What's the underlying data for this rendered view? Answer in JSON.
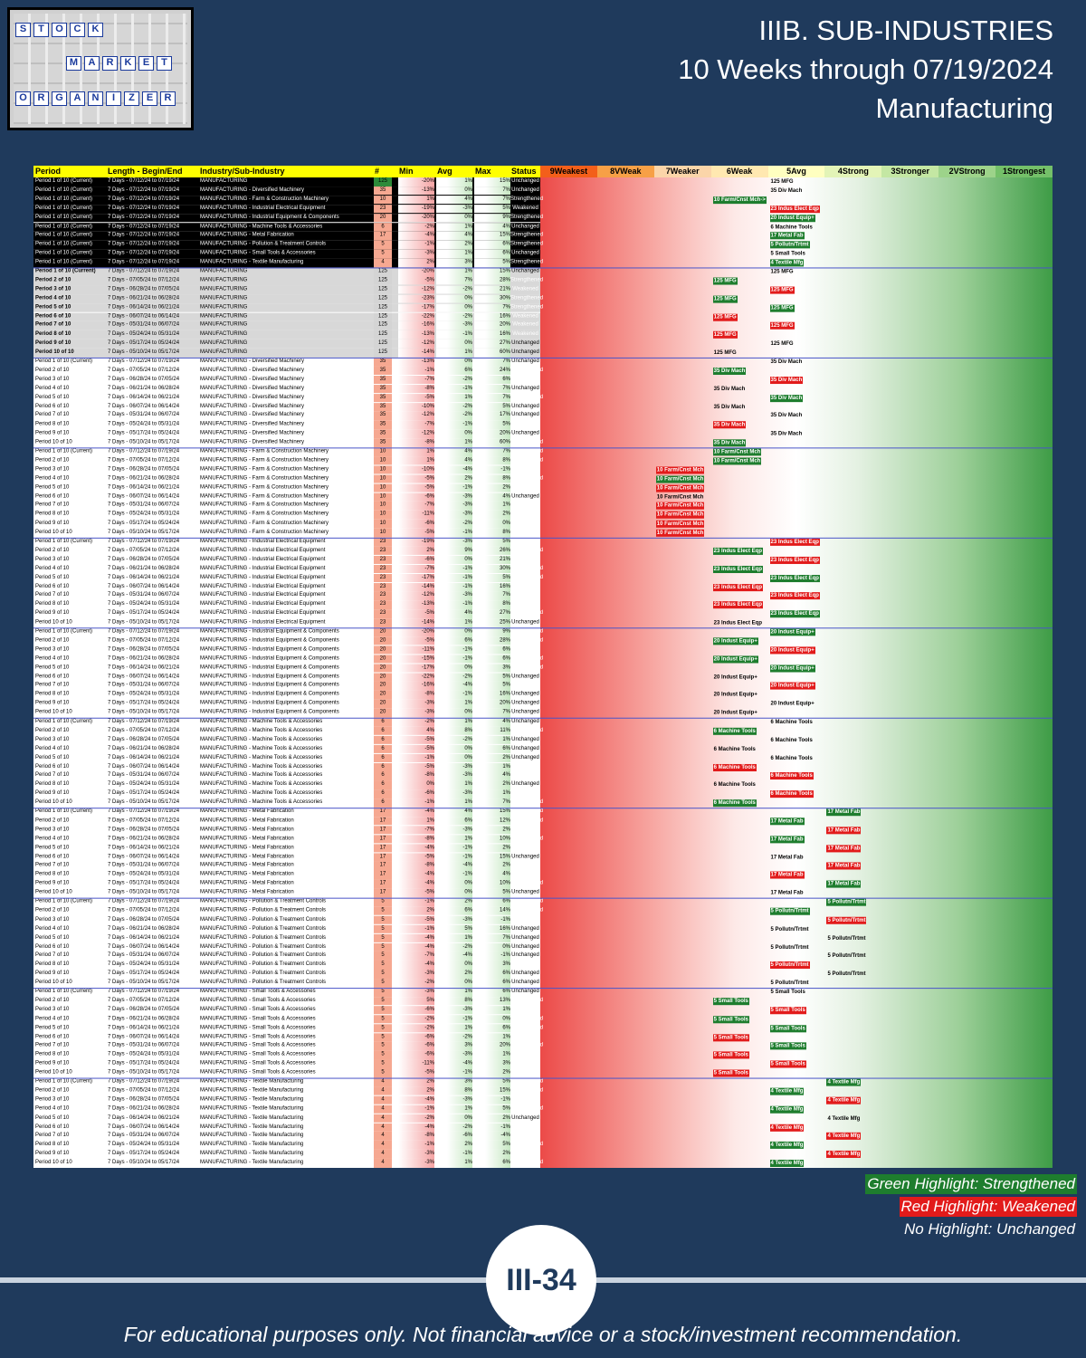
{
  "logo": {
    "rows": [
      [
        "S",
        "T",
        "O",
        "C",
        "K"
      ],
      [
        "M",
        "A",
        "R",
        "K",
        "E",
        "T"
      ],
      [
        "O",
        "R",
        "G",
        "A",
        "N",
        "I",
        "Z",
        "E",
        "R"
      ]
    ]
  },
  "title": {
    "line1": "IIIB. SUB-INDUSTRIES",
    "line2": "10 Weeks through 07/19/2024",
    "line3": "Manufacturing"
  },
  "header": {
    "period": "Period",
    "length": "Length - Begin/End",
    "industry": "Industry/Sub-Industry",
    "count": "#",
    "min": "Min",
    "avg": "Avg",
    "max": "Max",
    "status": "Status",
    "ranks": [
      "9Weakest",
      "8VWeak",
      "7Weaker",
      "6Weak",
      "5Avg",
      "4Strong",
      "3Stronger",
      "2VStrong",
      "1Strongest"
    ]
  },
  "colors": {
    "green": "#1e7d2e",
    "red": "#e21b1b",
    "header": "#ffff00"
  },
  "weeks": [
    "7 Days - 07/12/24 to 07/19/24",
    "7 Days - 07/05/24 to 07/12/24",
    "7 Days - 06/28/24 to 07/05/24",
    "7 Days - 06/21/24 to 06/28/24",
    "7 Days - 06/14/24 to 06/21/24",
    "7 Days - 06/07/24 to 06/14/24",
    "7 Days - 05/31/24 to 06/07/24",
    "7 Days - 05/24/24 to 05/31/24",
    "7 Days - 05/17/24 to 05/24/24",
    "7 Days - 05/10/24 to 05/17/24"
  ],
  "periods": [
    "Period 1 of 10 (Current)",
    "Period 2 of 10",
    "Period 3 of 10",
    "Period 4 of 10",
    "Period 5 of 10",
    "Period 6 of 10",
    "Period 7 of 10",
    "Period 8 of 10",
    "Period 9 of 10",
    "Period 10 of 10"
  ],
  "summary": [
    {
      "name": "MANUFACTURING",
      "n": "125",
      "min": "-20%",
      "avg": "1%",
      "max": "15%",
      "status": "Unchanged",
      "label": "125 MFG"
    },
    {
      "name": "MANUFACTURING - Diversified Machinery",
      "n": "35",
      "min": "-13%",
      "avg": "0%",
      "max": "7%",
      "status": "Unchanged",
      "label": "35 Div Mach"
    },
    {
      "name": "MANUFACTURING - Farm & Construction Machinery",
      "n": "10",
      "min": "1%",
      "avg": "4%",
      "max": "7%",
      "status": "Strengthened",
      "label": "10 Farm/Cnst Mch->"
    },
    {
      "name": "MANUFACTURING - Industrial Electrical Equipment",
      "n": "23",
      "min": "-19%",
      "avg": "-3%",
      "max": "5%",
      "status": "Weakened",
      "label": "23 Indus Elect Eqp"
    },
    {
      "name": "MANUFACTURING - Industrial Equipment & Components",
      "n": "20",
      "min": "-20%",
      "avg": "0%",
      "max": "9%",
      "status": "Strengthened",
      "label": "20 Indust Equip+"
    },
    {
      "name": "MANUFACTURING - Machine Tools & Accessories",
      "n": "6",
      "min": "-2%",
      "avg": "1%",
      "max": "4%",
      "status": "Unchanged",
      "label": "6 Machine Tools"
    },
    {
      "name": "MANUFACTURING - Metal Fabrication",
      "n": "17",
      "min": "-4%",
      "avg": "4%",
      "max": "15%",
      "status": "Strengthened",
      "label": "17 Metal Fab"
    },
    {
      "name": "MANUFACTURING - Pollution & Treatment Controls",
      "n": "5",
      "min": "-1%",
      "avg": "2%",
      "max": "6%",
      "status": "Strengthened",
      "label": "5 Pollutn/Trtmt"
    },
    {
      "name": "MANUFACTURING - Small Tools & Accessories",
      "n": "5",
      "min": "-3%",
      "avg": "1%",
      "max": "6%",
      "status": "Unchanged",
      "label": "5 Small Tools"
    },
    {
      "name": "MANUFACTURING - Textile Manufacturing",
      "n": "4",
      "min": "2%",
      "avg": "3%",
      "max": "5%",
      "status": "Strengthened",
      "label": "4 Textile Mfg"
    }
  ],
  "groups": [
    {
      "name": "MANUFACTURING",
      "n": "125",
      "label": "125 MFG",
      "rows": [
        {
          "min": "-20%",
          "avg": "1%",
          "max": "15%",
          "status": "Unchanged"
        },
        {
          "min": "-5%",
          "avg": "7%",
          "max": "28%",
          "status": "Strengthened"
        },
        {
          "min": "-12%",
          "avg": "-2%",
          "max": "21%",
          "status": "Weakened"
        },
        {
          "min": "-23%",
          "avg": "0%",
          "max": "30%",
          "status": "Strengthened"
        },
        {
          "min": "-17%",
          "avg": "0%",
          "max": "7%",
          "status": "Strengthened"
        },
        {
          "min": "-22%",
          "avg": "-2%",
          "max": "16%",
          "status": "Weakened"
        },
        {
          "min": "-16%",
          "avg": "-3%",
          "max": "20%",
          "status": "Weakened"
        },
        {
          "min": "-13%",
          "avg": "-1%",
          "max": "16%",
          "status": "Weakened"
        },
        {
          "min": "-12%",
          "avg": "0%",
          "max": "27%",
          "status": "Unchanged"
        },
        {
          "min": "-14%",
          "avg": "1%",
          "max": "60%",
          "status": "Unchanged"
        }
      ]
    },
    {
      "name": "MANUFACTURING - Diversified Machinery",
      "n": "35",
      "label": "35 Div Mach",
      "rows": [
        {
          "min": "-13%",
          "avg": "0%",
          "max": "7%",
          "status": "Unchanged"
        },
        {
          "min": "-1%",
          "avg": "6%",
          "max": "24%",
          "status": "Strengthened"
        },
        {
          "min": "-7%",
          "avg": "-2%",
          "max": "6%",
          "status": "Weakened"
        },
        {
          "min": "-8%",
          "avg": "-1%",
          "max": "7%",
          "status": "Unchanged"
        },
        {
          "min": "-5%",
          "avg": "1%",
          "max": "7%",
          "status": "Strengthened"
        },
        {
          "min": "-10%",
          "avg": "-2%",
          "max": "5%",
          "status": "Unchanged"
        },
        {
          "min": "-12%",
          "avg": "-2%",
          "max": "17%",
          "status": "Unchanged"
        },
        {
          "min": "-7%",
          "avg": "-1%",
          "max": "5%",
          "status": "Weakened"
        },
        {
          "min": "-12%",
          "avg": "0%",
          "max": "20%",
          "status": "Unchanged"
        },
        {
          "min": "-8%",
          "avg": "1%",
          "max": "60%",
          "status": "Strengthened"
        }
      ]
    },
    {
      "name": "MANUFACTURING - Farm & Construction Machinery",
      "n": "10",
      "label": "10 Farm/Cnst Mch",
      "rows": [
        {
          "min": "1%",
          "avg": "4%",
          "max": "7%",
          "status": "Strengthened"
        },
        {
          "min": "1%",
          "avg": "4%",
          "max": "8%",
          "status": "Strengthened"
        },
        {
          "min": "-10%",
          "avg": "-4%",
          "max": "-1%",
          "status": "Weakened"
        },
        {
          "min": "-5%",
          "avg": "2%",
          "max": "8%",
          "status": "Strengthened"
        },
        {
          "min": "-5%",
          "avg": "-1%",
          "max": "2%",
          "status": "Weakened"
        },
        {
          "min": "-6%",
          "avg": "-3%",
          "max": "4%",
          "status": "Unchanged"
        },
        {
          "min": "-7%",
          "avg": "-3%",
          "max": "1%",
          "status": "Weakened"
        },
        {
          "min": "-11%",
          "avg": "-3%",
          "max": "2%",
          "status": "Weakened"
        },
        {
          "min": "-6%",
          "avg": "-2%",
          "max": "0%",
          "status": "Weakened"
        },
        {
          "min": "-5%",
          "avg": "-1%",
          "max": "8%",
          "status": "Weakened"
        }
      ]
    },
    {
      "name": "MANUFACTURING - Industrial Electrical Equipment",
      "n": "23",
      "label": "23 Indus Elect Eqp",
      "rows": [
        {
          "min": "-19%",
          "avg": "-3%",
          "max": "5%",
          "status": "Weakened"
        },
        {
          "min": "2%",
          "avg": "9%",
          "max": "26%",
          "status": "Strengthened"
        },
        {
          "min": "-6%",
          "avg": "0%",
          "max": "21%",
          "status": "Weakened"
        },
        {
          "min": "-7%",
          "avg": "-1%",
          "max": "30%",
          "status": "Strengthened"
        },
        {
          "min": "-17%",
          "avg": "-1%",
          "max": "5%",
          "status": "Strengthened"
        },
        {
          "min": "-14%",
          "avg": "-1%",
          "max": "16%",
          "status": "Weakened"
        },
        {
          "min": "-12%",
          "avg": "-3%",
          "max": "7%",
          "status": "Weakened"
        },
        {
          "min": "-13%",
          "avg": "-1%",
          "max": "8%",
          "status": "Weakened"
        },
        {
          "min": "-5%",
          "avg": "4%",
          "max": "27%",
          "status": "Strengthened"
        },
        {
          "min": "-14%",
          "avg": "1%",
          "max": "25%",
          "status": "Unchanged"
        }
      ]
    },
    {
      "name": "MANUFACTURING - Industrial Equipment & Components",
      "n": "20",
      "label": "20 Indust Equip+",
      "rows": [
        {
          "min": "-20%",
          "avg": "0%",
          "max": "9%",
          "status": "Strengthened"
        },
        {
          "min": "-5%",
          "avg": "6%",
          "max": "28%",
          "status": "Strengthened"
        },
        {
          "min": "-11%",
          "avg": "-1%",
          "max": "6%",
          "status": "Weakened"
        },
        {
          "min": "-15%",
          "avg": "-1%",
          "max": "6%",
          "status": "Strengthened"
        },
        {
          "min": "-17%",
          "avg": "0%",
          "max": "3%",
          "status": "Strengthened"
        },
        {
          "min": "-22%",
          "avg": "-2%",
          "max": "5%",
          "status": "Unchanged"
        },
        {
          "min": "-16%",
          "avg": "-4%",
          "max": "5%",
          "status": "Weakened"
        },
        {
          "min": "-8%",
          "avg": "-1%",
          "max": "16%",
          "status": "Unchanged"
        },
        {
          "min": "-3%",
          "avg": "1%",
          "max": "20%",
          "status": "Unchanged"
        },
        {
          "min": "-3%",
          "avg": "0%",
          "max": "7%",
          "status": "Unchanged"
        }
      ]
    },
    {
      "name": "MANUFACTURING - Machine Tools & Accessories",
      "n": "6",
      "label": "6 Machine Tools",
      "rows": [
        {
          "min": "-2%",
          "avg": "1%",
          "max": "4%",
          "status": "Unchanged"
        },
        {
          "min": "4%",
          "avg": "8%",
          "max": "11%",
          "status": "Strengthened"
        },
        {
          "min": "-5%",
          "avg": "-2%",
          "max": "1%",
          "status": "Unchanged"
        },
        {
          "min": "-5%",
          "avg": "0%",
          "max": "6%",
          "status": "Unchanged"
        },
        {
          "min": "-1%",
          "avg": "0%",
          "max": "2%",
          "status": "Unchanged"
        },
        {
          "min": "-5%",
          "avg": "-3%",
          "max": "1%",
          "status": "Weakened"
        },
        {
          "min": "-8%",
          "avg": "-3%",
          "max": "4%",
          "status": "Weakened"
        },
        {
          "min": "0%",
          "avg": "1%",
          "max": "2%",
          "status": "Unchanged"
        },
        {
          "min": "-6%",
          "avg": "-3%",
          "max": "1%",
          "status": "Weakened"
        },
        {
          "min": "-1%",
          "avg": "1%",
          "max": "7%",
          "status": "Strengthened"
        }
      ]
    },
    {
      "name": "MANUFACTURING - Metal Fabrication",
      "n": "17",
      "label": "17 Metal Fab",
      "rows": [
        {
          "min": "-4%",
          "avg": "4%",
          "max": "15%",
          "status": "Strengthened"
        },
        {
          "min": "1%",
          "avg": "6%",
          "max": "12%",
          "status": "Strengthened"
        },
        {
          "min": "-7%",
          "avg": "-3%",
          "max": "2%",
          "status": "Weakened"
        },
        {
          "min": "-8%",
          "avg": "1%",
          "max": "10%",
          "status": "Strengthened"
        },
        {
          "min": "-4%",
          "avg": "-1%",
          "max": "2%",
          "status": "Weakened"
        },
        {
          "min": "-5%",
          "avg": "-1%",
          "max": "15%",
          "status": "Unchanged"
        },
        {
          "min": "-8%",
          "avg": "-4%",
          "max": "2%",
          "status": "Weakened"
        },
        {
          "min": "-4%",
          "avg": "-1%",
          "max": "4%",
          "status": "Weakened"
        },
        {
          "min": "-4%",
          "avg": "0%",
          "max": "10%",
          "status": "Strengthened"
        },
        {
          "min": "-5%",
          "avg": "0%",
          "max": "5%",
          "status": "Unchanged"
        }
      ]
    },
    {
      "name": "MANUFACTURING - Pollution & Treatment Controls",
      "n": "5",
      "label": "5 Pollutn/Trtmt",
      "rows": [
        {
          "min": "-1%",
          "avg": "2%",
          "max": "6%",
          "status": "Strengthened"
        },
        {
          "min": "2%",
          "avg": "6%",
          "max": "14%",
          "status": "Strengthened"
        },
        {
          "min": "-5%",
          "avg": "-3%",
          "max": "-1%",
          "status": "Weakened"
        },
        {
          "min": "-1%",
          "avg": "5%",
          "max": "16%",
          "status": "Unchanged"
        },
        {
          "min": "-4%",
          "avg": "1%",
          "max": "7%",
          "status": "Unchanged"
        },
        {
          "min": "-4%",
          "avg": "-2%",
          "max": "0%",
          "status": "Unchanged"
        },
        {
          "min": "-7%",
          "avg": "-4%",
          "max": "-1%",
          "status": "Unchanged"
        },
        {
          "min": "-4%",
          "avg": "0%",
          "max": "3%",
          "status": "Weakened"
        },
        {
          "min": "-3%",
          "avg": "2%",
          "max": "6%",
          "status": "Unchanged"
        },
        {
          "min": "-2%",
          "avg": "0%",
          "max": "6%",
          "status": "Unchanged"
        }
      ]
    },
    {
      "name": "MANUFACTURING - Small Tools & Accessories",
      "n": "5",
      "label": "5 Small Tools",
      "rows": [
        {
          "min": "-3%",
          "avg": "1%",
          "max": "6%",
          "status": "Unchanged"
        },
        {
          "min": "5%",
          "avg": "8%",
          "max": "13%",
          "status": "Strengthened"
        },
        {
          "min": "-6%",
          "avg": "-3%",
          "max": "1%",
          "status": "Weakened"
        },
        {
          "min": "-2%",
          "avg": "-1%",
          "max": "0%",
          "status": "Strengthened"
        },
        {
          "min": "-2%",
          "avg": "1%",
          "max": "6%",
          "status": "Strengthened"
        },
        {
          "min": "-6%",
          "avg": "-2%",
          "max": "1%",
          "status": "Weakened"
        },
        {
          "min": "-6%",
          "avg": "3%",
          "max": "20%",
          "status": "Strengthened"
        },
        {
          "min": "-6%",
          "avg": "-3%",
          "max": "1%",
          "status": "Weakened"
        },
        {
          "min": "-11%",
          "avg": "-4%",
          "max": "3%",
          "status": "Weakened"
        },
        {
          "min": "-5%",
          "avg": "-1%",
          "max": "2%",
          "status": "Weakened"
        }
      ]
    },
    {
      "name": "MANUFACTURING - Textile Manufacturing",
      "n": "4",
      "label": "4 Textile Mfg",
      "rows": [
        {
          "min": "2%",
          "avg": "3%",
          "max": "5%",
          "status": "Strengthened"
        },
        {
          "min": "2%",
          "avg": "8%",
          "max": "15%",
          "status": "Strengthened"
        },
        {
          "min": "-4%",
          "avg": "-3%",
          "max": "-1%",
          "status": "Weakened"
        },
        {
          "min": "-1%",
          "avg": "1%",
          "max": "5%",
          "status": "Strengthened"
        },
        {
          "min": "-2%",
          "avg": "0%",
          "max": "2%",
          "status": "Unchanged"
        },
        {
          "min": "-4%",
          "avg": "-2%",
          "max": "-1%",
          "status": "Weakened"
        },
        {
          "min": "-8%",
          "avg": "-6%",
          "max": "-4%",
          "status": "Weakened"
        },
        {
          "min": "-1%",
          "avg": "2%",
          "max": "5%",
          "status": "Strengthened"
        },
        {
          "min": "-3%",
          "avg": "-1%",
          "max": "2%",
          "status": "Weakened"
        },
        {
          "min": "-3%",
          "avg": "1%",
          "max": "6%",
          "status": "Strengthened"
        }
      ]
    }
  ],
  "legend": {
    "green": "Green Highlight: Strengthened",
    "red": "Red Highlight: Weakened",
    "none": "No Highlight: Unchanged"
  },
  "page_number": "III-34",
  "disclaimer": "For educational purposes only. Not financial advice or a stock/investment recommendation."
}
